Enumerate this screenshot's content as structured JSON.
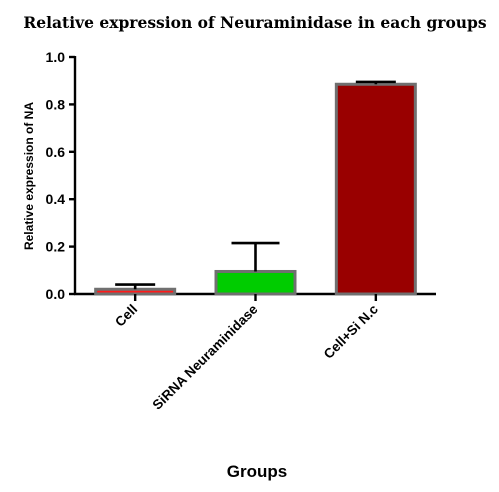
{
  "chart_data": {
    "type": "bar",
    "title": "Relative expression of Neuraminidase in each groups",
    "xlabel": "Groups",
    "ylabel": "Relative expression of NA",
    "ylim": [
      0,
      1.0
    ],
    "yticks": [
      "0.0",
      "0.2",
      "0.4",
      "0.6",
      "0.8",
      "1.0"
    ],
    "categories": [
      "Cell",
      "SiRNA Neuraminidase",
      "Cell+Si N.c"
    ],
    "values": [
      0.02,
      0.095,
      0.885
    ],
    "errors": [
      0.02,
      0.12,
      0.01
    ],
    "colors": [
      "#ff1a1a",
      "#00cc00",
      "#990000"
    ],
    "bar_outline_color": "#707070",
    "grid": false,
    "legend": "none"
  }
}
